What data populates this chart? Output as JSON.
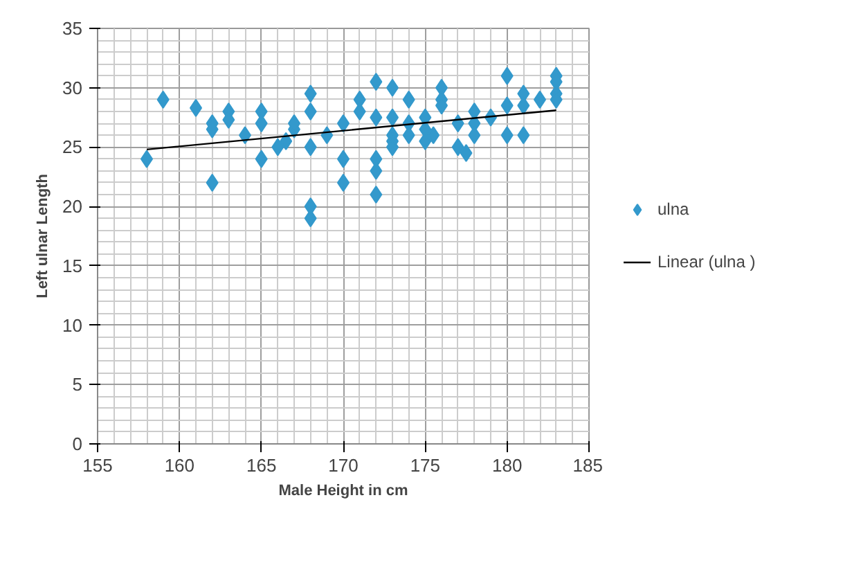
{
  "chart_data": {
    "type": "scatter",
    "xlabel": "Male Height in cm",
    "ylabel": "Left ulnar Length",
    "xlim": [
      155,
      185
    ],
    "ylim": [
      0,
      35
    ],
    "xticks": [
      155,
      160,
      165,
      170,
      175,
      180,
      185
    ],
    "yticks": [
      0,
      5,
      10,
      15,
      20,
      25,
      30,
      35
    ],
    "grid": true,
    "legend": "right",
    "marker": "diamond",
    "series": [
      {
        "name": "ulna",
        "color": "#3399cc",
        "x": [
          158,
          159,
          161,
          162,
          162,
          162,
          163,
          163,
          164,
          165,
          165,
          165,
          166,
          166.5,
          167,
          167,
          168,
          168,
          168,
          168,
          168,
          169,
          170,
          170,
          170,
          171,
          171,
          172,
          172,
          172,
          172,
          172,
          173,
          173,
          173,
          173,
          173,
          174,
          174,
          174,
          175,
          175,
          175,
          175.5,
          176,
          176,
          176,
          177,
          177,
          177.5,
          178,
          178,
          178,
          179,
          180,
          180,
          180,
          181,
          181,
          181,
          182,
          183,
          183,
          183,
          183
        ],
        "values": [
          24,
          29,
          28.3,
          27,
          26.5,
          22,
          28,
          27.3,
          26,
          28,
          27,
          24,
          25,
          25.5,
          26.5,
          27,
          29.5,
          28,
          25,
          20,
          19,
          26,
          27,
          24,
          22,
          29,
          28,
          30.5,
          27.5,
          24,
          23,
          21,
          30,
          27.5,
          26,
          25.5,
          25,
          29,
          27,
          26,
          27.5,
          26.5,
          25.5,
          26,
          30,
          29,
          28.5,
          27,
          25,
          24.5,
          28,
          27,
          26,
          27.5,
          31,
          28.5,
          26,
          29.5,
          28.5,
          26,
          29,
          31,
          30.5,
          29.5,
          29
        ]
      },
      {
        "name": "Linear (ulna )",
        "type": "line",
        "color": "#000000",
        "marker": "none",
        "line_style": "solid",
        "x": [
          158,
          183
        ],
        "values": [
          24.8,
          28.1
        ]
      }
    ]
  }
}
